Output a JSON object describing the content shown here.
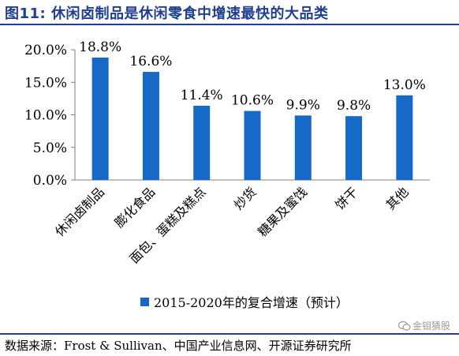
{
  "figure": {
    "title": "图11:  休闲卤制品是休闲零食中增速最快的大品类",
    "source": "数据来源：Frost & Sullivan、中国产业信息网、开源证券研究所",
    "watermark": "金钼猜股"
  },
  "colors": {
    "bar": "#1769c7",
    "title": "#1f3f8f",
    "axis": "#7f7f7f"
  },
  "chart_data": {
    "type": "bar",
    "title": "",
    "xlabel": "",
    "ylabel": "",
    "categories": [
      "休闲卤制品",
      "膨化食品",
      "面包、蛋糕及糕点",
      "炒货",
      "糖果及蜜饯",
      "饼干",
      "其他"
    ],
    "series": [
      {
        "name": "2015-2020年的复合增速（预计）",
        "values": [
          18.8,
          16.6,
          11.4,
          10.6,
          9.9,
          9.8,
          13.0
        ],
        "labels": [
          "18.8%",
          "16.6%",
          "11.4%",
          "10.6%",
          "9.9%",
          "9.8%",
          "13.0%"
        ]
      }
    ],
    "ylim": [
      0,
      20
    ],
    "yticks": [
      0,
      5,
      10,
      15,
      20
    ],
    "ytick_labels": [
      "0.0%",
      "5.0%",
      "10.0%",
      "15.0%",
      "20.0%"
    ],
    "grid": false,
    "legend": "bottom"
  }
}
